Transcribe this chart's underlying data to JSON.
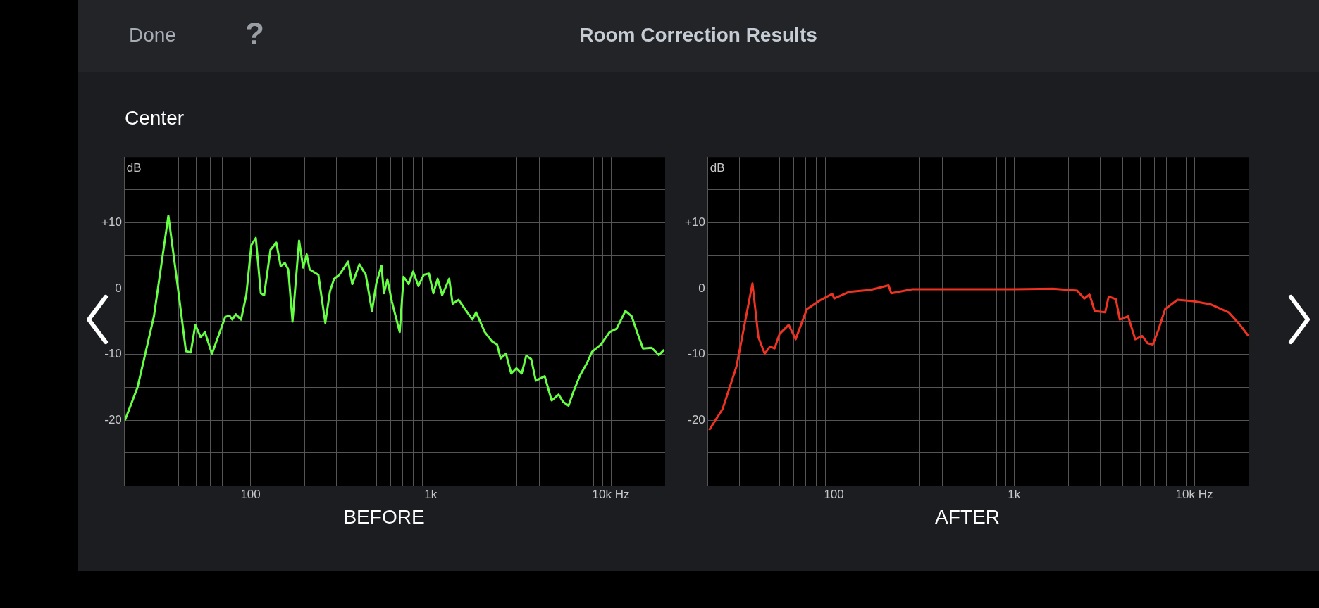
{
  "chart_data": [
    {
      "type": "other",
      "title": "Room Correction Results",
      "annotations": [
        "Done",
        "Center",
        "?"
      ]
    },
    {
      "type": "line",
      "title": "BEFORE",
      "ylabel": "dB",
      "log": "x",
      "grid": true,
      "legend": false,
      "marker": "none",
      "line_style": "solid",
      "xlim": [
        20,
        20000
      ],
      "xticks": [
        {
          "value": 30,
          "label": null
        },
        {
          "value": 40,
          "label": null
        },
        {
          "value": 50,
          "label": null
        },
        {
          "value": 60,
          "label": null
        },
        {
          "value": 70,
          "label": null
        },
        {
          "value": 80,
          "label": null
        },
        {
          "value": 90,
          "label": null
        },
        100,
        {
          "value": 200,
          "label": null
        },
        {
          "value": 300,
          "label": null
        },
        {
          "value": 400,
          "label": null
        },
        {
          "value": 500,
          "label": null
        },
        {
          "value": 600,
          "label": null
        },
        {
          "value": 700,
          "label": null
        },
        {
          "value": 800,
          "label": null
        },
        {
          "value": 900,
          "label": null
        },
        {
          "value": 1000,
          "label": "1k"
        },
        {
          "value": 2000,
          "label": null
        },
        {
          "value": 3000,
          "label": null
        },
        {
          "value": 4000,
          "label": null
        },
        {
          "value": 5000,
          "label": null
        },
        {
          "value": 6000,
          "label": null
        },
        {
          "value": 7000,
          "label": null
        },
        {
          "value": 8000,
          "label": null
        },
        {
          "value": 9000,
          "label": null
        },
        {
          "value": 10000,
          "label": "10k Hz"
        }
      ],
      "ylim": [
        -30,
        20
      ],
      "yticks": [
        {
          "value": -25,
          "label": null
        },
        -20,
        {
          "value": -15,
          "label": null
        },
        -10,
        {
          "value": -5,
          "label": null
        },
        0,
        {
          "value": 5,
          "label": null
        },
        {
          "value": 10,
          "label": "+10"
        },
        {
          "value": 15,
          "label": null
        }
      ],
      "series": [
        {
          "color": "#66ff44",
          "x": [
            20.1,
            23.6,
            29.1,
            35,
            39.5,
            43.8,
            46.6,
            49.4,
            52.9,
            55.8,
            61.1,
            72.4,
            76.4,
            79.2,
            82.8,
            88.6,
            94.8,
            101,
            107,
            114,
            119,
            129,
            139,
            147,
            155,
            162,
            171,
            186,
            196,
            205,
            213,
            238,
            249,
            260,
            276,
            291,
            311,
            348,
            367,
            402,
            436,
            472,
            499,
            533,
            550,
            575,
            609,
            673,
            707,
            754,
            799,
            855,
            914,
            978,
            1034,
            1093,
            1158,
            1267,
            1323,
            1428,
            1596,
            1706,
            1785,
            1996,
            2184,
            2336,
            2443,
            2616,
            2798,
            2990,
            3199,
            3390,
            3610,
            3830,
            4290,
            4690,
            5130,
            5430,
            5820,
            6210,
            6740,
            7370,
            7860,
            8800,
            9840,
            10760,
            12040,
            13040,
            14100,
            15070,
            16850,
            18440,
            19710
          ],
          "values": [
            -20,
            -15,
            -4.2,
            11.1,
            0.2,
            -9.5,
            -9.7,
            -5.5,
            -7.4,
            -6.6,
            -9.9,
            -4.3,
            -4.1,
            -4.7,
            -3.9,
            -4.7,
            -0.9,
            6.6,
            7.7,
            -0.7,
            -1,
            5.9,
            7,
            3.4,
            3.9,
            2.9,
            -5,
            7.3,
            3.2,
            5.2,
            2.9,
            2.1,
            -1.7,
            -5.2,
            -0.4,
            1.5,
            2.1,
            4.1,
            0.7,
            3.7,
            2.1,
            -3.4,
            0.8,
            3.5,
            -0.7,
            1.4,
            -2,
            -6.6,
            1.8,
            0.7,
            2.6,
            0.4,
            2.1,
            2.3,
            -0.7,
            1.5,
            -1,
            1.5,
            -2.3,
            -1.7,
            -3.6,
            -4.7,
            -3.6,
            -6.6,
            -8,
            -8.5,
            -10.6,
            -9.9,
            -12.9,
            -12.1,
            -12.9,
            -10.2,
            -10.7,
            -14,
            -13.3,
            -17,
            -16.1,
            -17.2,
            -17.8,
            -15.6,
            -13.2,
            -11.3,
            -9.6,
            -8.5,
            -6.6,
            -6.1,
            -3.4,
            -4.2,
            -6.9,
            -9.1,
            -9,
            -10.1,
            -9.3
          ]
        }
      ]
    },
    {
      "type": "line",
      "title": "AFTER",
      "ylabel": "dB",
      "log": "x",
      "grid": true,
      "legend": false,
      "marker": "none",
      "line_style": "solid",
      "xlim": [
        20,
        20000
      ],
      "xticks": [
        {
          "value": 30,
          "label": null
        },
        {
          "value": 40,
          "label": null
        },
        {
          "value": 50,
          "label": null
        },
        {
          "value": 60,
          "label": null
        },
        {
          "value": 70,
          "label": null
        },
        {
          "value": 80,
          "label": null
        },
        {
          "value": 90,
          "label": null
        },
        100,
        {
          "value": 200,
          "label": null
        },
        {
          "value": 300,
          "label": null
        },
        {
          "value": 400,
          "label": null
        },
        {
          "value": 500,
          "label": null
        },
        {
          "value": 600,
          "label": null
        },
        {
          "value": 700,
          "label": null
        },
        {
          "value": 800,
          "label": null
        },
        {
          "value": 900,
          "label": null
        },
        {
          "value": 1000,
          "label": "1k"
        },
        {
          "value": 2000,
          "label": null
        },
        {
          "value": 3000,
          "label": null
        },
        {
          "value": 4000,
          "label": null
        },
        {
          "value": 5000,
          "label": null
        },
        {
          "value": 6000,
          "label": null
        },
        {
          "value": 7000,
          "label": null
        },
        {
          "value": 8000,
          "label": null
        },
        {
          "value": 9000,
          "label": null
        },
        {
          "value": 10000,
          "label": "10k Hz"
        }
      ],
      "ylim": [
        -30,
        20
      ],
      "yticks": [
        {
          "value": -25,
          "label": null
        },
        -20,
        {
          "value": -15,
          "label": null
        },
        -10,
        {
          "value": -5,
          "label": null
        },
        0,
        {
          "value": 5,
          "label": null
        },
        {
          "value": 10,
          "label": "+10"
        },
        {
          "value": 15,
          "label": null
        }
      ],
      "series": [
        {
          "color": "#ee3322",
          "x": [
            20.3,
            24.1,
            28.8,
            32.3,
            35.3,
            38.1,
            41.3,
            44.2,
            46.8,
            49.9,
            56.1,
            61.3,
            70.8,
            84.7,
            97.8,
            100.4,
            121,
            159,
            201,
            208,
            272,
            426,
            1000,
            1640,
            2240,
            2450,
            2620,
            2800,
            3200,
            3350,
            3670,
            3860,
            4290,
            4700,
            5140,
            5500,
            5880,
            6300,
            6890,
            8070,
            9870,
            12360,
            15500,
            17680,
            20000
          ],
          "values": [
            -21.5,
            -18.3,
            -11.8,
            -4.7,
            0.8,
            -7.4,
            -9.9,
            -8.8,
            -9.1,
            -6.9,
            -5.5,
            -7.7,
            -3.1,
            -1.7,
            -0.8,
            -1.5,
            -0.5,
            -0.2,
            0.5,
            -0.7,
            -0.1,
            -0.1,
            -0.1,
            0,
            -0.3,
            -1.5,
            -0.9,
            -3.4,
            -3.6,
            -1.2,
            -1.6,
            -4.7,
            -4.2,
            -7.7,
            -7.2,
            -8.3,
            -8.5,
            -6.4,
            -3.1,
            -1.7,
            -1.9,
            -2.4,
            -3.6,
            -5.3,
            -7.2
          ]
        }
      ]
    }
  ]
}
